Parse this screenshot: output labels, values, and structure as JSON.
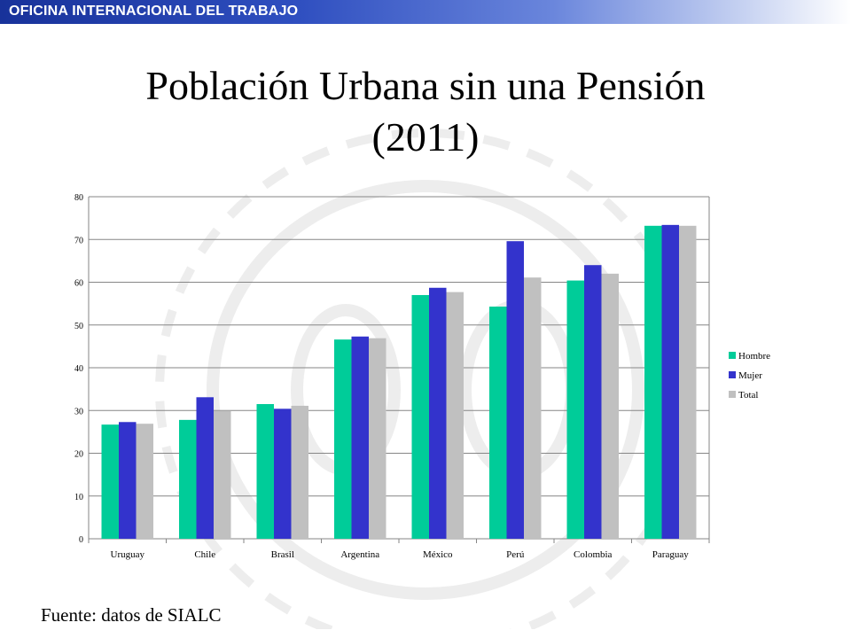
{
  "header": {
    "org_name": "OFICINA INTERNACIONAL DEL TRABAJO"
  },
  "slide": {
    "title_line1": "Población Urbana sin una Pensión",
    "title_line2": "(2011)",
    "source_note": "Fuente: datos de SIALC"
  },
  "colors": {
    "header_bar_start": "#18329a",
    "hombre": "#00cc99",
    "mujer": "#3333cc",
    "total": "#c0c0c0",
    "gridline": "#868686"
  },
  "chart_data": {
    "type": "bar",
    "title": "",
    "xlabel": "",
    "ylabel": "",
    "ylim": [
      0,
      80
    ],
    "yticks": [
      0,
      10,
      20,
      30,
      40,
      50,
      60,
      70,
      80
    ],
    "grid": true,
    "legend_position": "right",
    "categories": [
      "Uruguay",
      "Chile",
      "Brasil",
      "Argentina",
      "México",
      "Perú",
      "Colombia",
      "Paraguay"
    ],
    "series": [
      {
        "name": "Hombre",
        "color": "#00cc99",
        "values": [
          26.7,
          27.8,
          31.5,
          46.6,
          57.0,
          54.3,
          60.4,
          73.2
        ]
      },
      {
        "name": "Mujer",
        "color": "#3333cc",
        "values": [
          27.3,
          33.1,
          30.4,
          47.3,
          58.7,
          69.6,
          64.0,
          73.4
        ]
      },
      {
        "name": "Total",
        "color": "#c0c0c0",
        "values": [
          26.9,
          29.9,
          31.1,
          46.9,
          57.7,
          61.1,
          62.0,
          73.2
        ]
      }
    ]
  }
}
